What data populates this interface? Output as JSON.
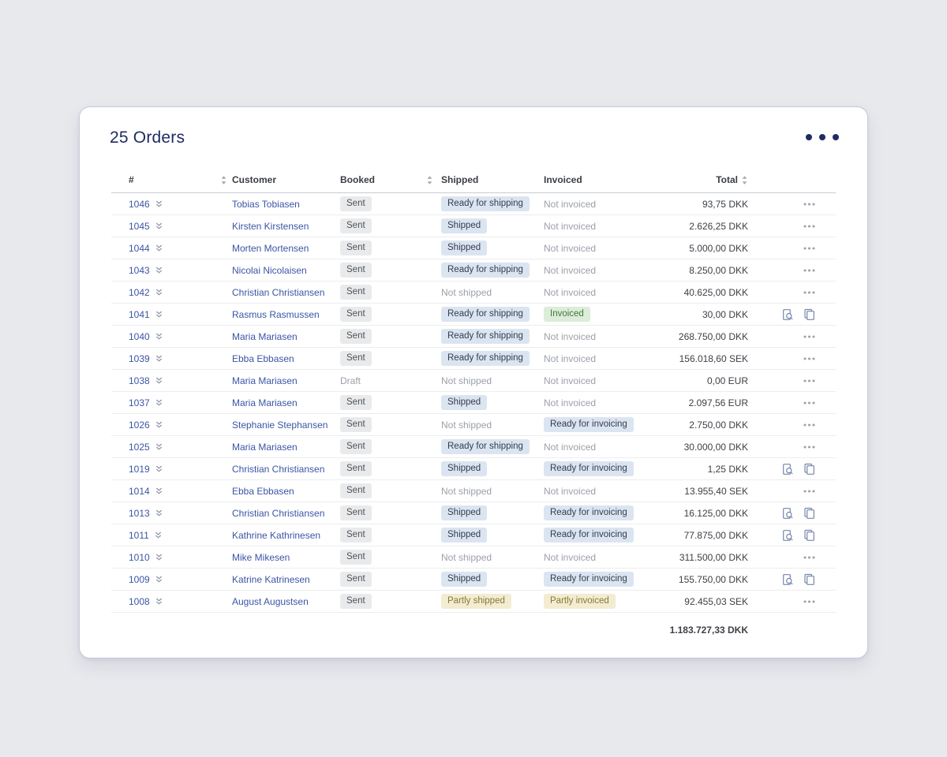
{
  "header": {
    "title": "25 Orders"
  },
  "table": {
    "columns": {
      "id": "#",
      "customer": "Customer",
      "booked": "Booked",
      "shipped": "Shipped",
      "invoiced": "Invoiced",
      "total": "Total"
    },
    "rows": [
      {
        "id": "1046",
        "customer": "Tobias Tobiasen",
        "booked": {
          "text": "Sent",
          "variant": "gray"
        },
        "shipped": {
          "text": "Ready for shipping",
          "variant": "blue"
        },
        "invoiced": {
          "text": "Not invoiced",
          "variant": "muted"
        },
        "total": "93,75 DKK",
        "actions": "menu"
      },
      {
        "id": "1045",
        "customer": "Kirsten Kirstensen",
        "booked": {
          "text": "Sent",
          "variant": "gray"
        },
        "shipped": {
          "text": "Shipped",
          "variant": "blue"
        },
        "invoiced": {
          "text": "Not invoiced",
          "variant": "muted"
        },
        "total": "2.626,25 DKK",
        "actions": "menu"
      },
      {
        "id": "1044",
        "customer": "Morten Mortensen",
        "booked": {
          "text": "Sent",
          "variant": "gray"
        },
        "shipped": {
          "text": "Shipped",
          "variant": "blue"
        },
        "invoiced": {
          "text": "Not invoiced",
          "variant": "muted"
        },
        "total": "5.000,00 DKK",
        "actions": "menu"
      },
      {
        "id": "1043",
        "customer": "Nicolai Nicolaisen",
        "booked": {
          "text": "Sent",
          "variant": "gray"
        },
        "shipped": {
          "text": "Ready for shipping",
          "variant": "blue"
        },
        "invoiced": {
          "text": "Not invoiced",
          "variant": "muted"
        },
        "total": "8.250,00 DKK",
        "actions": "menu"
      },
      {
        "id": "1042",
        "customer": "Christian Christiansen",
        "booked": {
          "text": "Sent",
          "variant": "gray"
        },
        "shipped": {
          "text": "Not shipped",
          "variant": "muted"
        },
        "invoiced": {
          "text": "Not invoiced",
          "variant": "muted"
        },
        "total": "40.625,00 DKK",
        "actions": "menu"
      },
      {
        "id": "1041",
        "customer": "Rasmus Rasmussen",
        "booked": {
          "text": "Sent",
          "variant": "gray"
        },
        "shipped": {
          "text": "Ready for shipping",
          "variant": "blue"
        },
        "invoiced": {
          "text": "Invoiced",
          "variant": "green"
        },
        "total": "30,00 DKK",
        "actions": "icons"
      },
      {
        "id": "1040",
        "customer": "Maria Mariasen",
        "booked": {
          "text": "Sent",
          "variant": "gray"
        },
        "shipped": {
          "text": "Ready for shipping",
          "variant": "blue"
        },
        "invoiced": {
          "text": "Not invoiced",
          "variant": "muted"
        },
        "total": "268.750,00 DKK",
        "actions": "menu"
      },
      {
        "id": "1039",
        "customer": "Ebba Ebbasen",
        "booked": {
          "text": "Sent",
          "variant": "gray"
        },
        "shipped": {
          "text": "Ready for shipping",
          "variant": "blue"
        },
        "invoiced": {
          "text": "Not invoiced",
          "variant": "muted"
        },
        "total": "156.018,60 SEK",
        "actions": "menu"
      },
      {
        "id": "1038",
        "customer": "Maria Mariasen",
        "booked": {
          "text": "Draft",
          "variant": "muted"
        },
        "shipped": {
          "text": "Not shipped",
          "variant": "muted"
        },
        "invoiced": {
          "text": "Not invoiced",
          "variant": "muted"
        },
        "total": "0,00 EUR",
        "actions": "menu"
      },
      {
        "id": "1037",
        "customer": "Maria Mariasen",
        "booked": {
          "text": "Sent",
          "variant": "gray"
        },
        "shipped": {
          "text": "Shipped",
          "variant": "blue"
        },
        "invoiced": {
          "text": "Not invoiced",
          "variant": "muted"
        },
        "total": "2.097,56 EUR",
        "actions": "menu"
      },
      {
        "id": "1026",
        "customer": "Stephanie Stephansen",
        "booked": {
          "text": "Sent",
          "variant": "gray"
        },
        "shipped": {
          "text": "Not shipped",
          "variant": "muted"
        },
        "invoiced": {
          "text": "Ready for invoicing",
          "variant": "blue"
        },
        "total": "2.750,00 DKK",
        "actions": "menu"
      },
      {
        "id": "1025",
        "customer": "Maria Mariasen",
        "booked": {
          "text": "Sent",
          "variant": "gray"
        },
        "shipped": {
          "text": "Ready for shipping",
          "variant": "blue"
        },
        "invoiced": {
          "text": "Not invoiced",
          "variant": "muted"
        },
        "total": "30.000,00 DKK",
        "actions": "menu"
      },
      {
        "id": "1019",
        "customer": "Christian Christiansen",
        "booked": {
          "text": "Sent",
          "variant": "gray"
        },
        "shipped": {
          "text": "Shipped",
          "variant": "blue"
        },
        "invoiced": {
          "text": "Ready for invoicing",
          "variant": "blue"
        },
        "total": "1,25 DKK",
        "actions": "icons"
      },
      {
        "id": "1014",
        "customer": "Ebba Ebbasen",
        "booked": {
          "text": "Sent",
          "variant": "gray"
        },
        "shipped": {
          "text": "Not shipped",
          "variant": "muted"
        },
        "invoiced": {
          "text": "Not invoiced",
          "variant": "muted"
        },
        "total": "13.955,40 SEK",
        "actions": "menu"
      },
      {
        "id": "1013",
        "customer": "Christian Christiansen",
        "booked": {
          "text": "Sent",
          "variant": "gray"
        },
        "shipped": {
          "text": "Shipped",
          "variant": "blue"
        },
        "invoiced": {
          "text": "Ready for invoicing",
          "variant": "blue"
        },
        "total": "16.125,00 DKK",
        "actions": "icons"
      },
      {
        "id": "1011",
        "customer": "Kathrine Kathrinesen",
        "booked": {
          "text": "Sent",
          "variant": "gray"
        },
        "shipped": {
          "text": "Shipped",
          "variant": "blue"
        },
        "invoiced": {
          "text": "Ready for invoicing",
          "variant": "blue"
        },
        "total": "77.875,00 DKK",
        "actions": "icons"
      },
      {
        "id": "1010",
        "customer": "Mike Mikesen",
        "booked": {
          "text": "Sent",
          "variant": "gray"
        },
        "shipped": {
          "text": "Not shipped",
          "variant": "muted"
        },
        "invoiced": {
          "text": "Not invoiced",
          "variant": "muted"
        },
        "total": "311.500,00 DKK",
        "actions": "menu"
      },
      {
        "id": "1009",
        "customer": "Katrine Katrinesen",
        "booked": {
          "text": "Sent",
          "variant": "gray"
        },
        "shipped": {
          "text": "Shipped",
          "variant": "blue"
        },
        "invoiced": {
          "text": "Ready for invoicing",
          "variant": "blue"
        },
        "total": "155.750,00 DKK",
        "actions": "icons"
      },
      {
        "id": "1008",
        "customer": "August Augustsen",
        "booked": {
          "text": "Sent",
          "variant": "gray"
        },
        "shipped": {
          "text": "Partly shipped",
          "variant": "yellow"
        },
        "invoiced": {
          "text": "Partly invoiced",
          "variant": "yellow"
        },
        "total": "92.455,03 SEK",
        "actions": "menu"
      }
    ],
    "footer_total": "1.183.727,33 DKK"
  },
  "colors": {
    "accent_navy": "#1e2c64",
    "link_blue": "#3b55a5",
    "badge_blue_bg": "#dbe5f1",
    "badge_green_bg": "#dcedd9",
    "badge_yellow_bg": "#f3ecd1",
    "badge_gray_bg": "#e9eaeb",
    "muted_text": "#9ba0a8"
  }
}
